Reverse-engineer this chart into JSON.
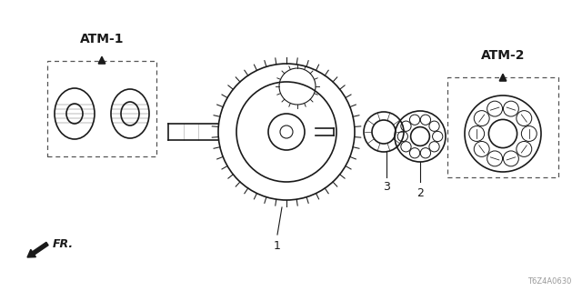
{
  "bg_color": "#ffffff",
  "line_color": "#1a1a1a",
  "text_color": "#1a1a1a",
  "fig_width": 6.4,
  "fig_height": 3.2,
  "dpi": 100,
  "watermark": "T6Z4A0630",
  "fr_label": "FR.",
  "atm1_label": "ATM-1",
  "atm2_label": "ATM-2",
  "part_labels": [
    "1",
    "2",
    "3"
  ]
}
